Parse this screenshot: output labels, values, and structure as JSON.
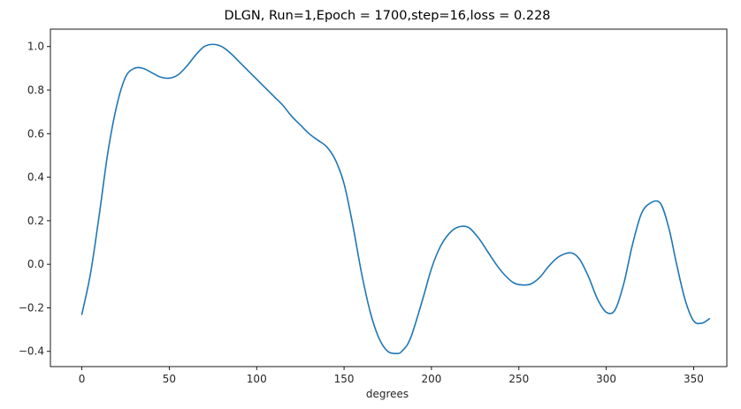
{
  "chart_data": {
    "type": "line",
    "title": "DLGN, Run=1,Epoch = 1700,step=16,loss = 0.228",
    "xlabel": "degrees",
    "ylabel": "",
    "xlim": [
      -18,
      369
    ],
    "ylim": [
      -0.47,
      1.08
    ],
    "xticks": [
      0,
      50,
      100,
      150,
      200,
      250,
      300,
      350
    ],
    "yticks": [
      -0.4,
      -0.2,
      0.0,
      0.2,
      0.4,
      0.6,
      0.8,
      1.0
    ],
    "ytick_labels": [
      "−0.4",
      "−0.2",
      "0.0",
      "0.2",
      "0.4",
      "0.6",
      "0.8",
      "1.0"
    ],
    "grid": false,
    "legend": "none",
    "series": [
      {
        "color": "#1f77b4",
        "x": [
          0,
          5,
          10,
          15,
          20,
          25,
          30,
          35,
          40,
          45,
          50,
          55,
          60,
          65,
          70,
          75,
          80,
          85,
          90,
          95,
          100,
          105,
          110,
          115,
          120,
          125,
          130,
          135,
          140,
          145,
          150,
          155,
          160,
          165,
          170,
          175,
          180,
          183,
          188,
          195,
          200,
          205,
          210,
          215,
          221,
          227,
          232,
          237,
          242,
          247,
          252,
          257,
          262,
          267,
          272,
          277,
          281,
          285,
          290,
          295,
          300,
          305,
          310,
          315,
          320,
          325,
          331,
          336,
          340,
          345,
          350,
          355,
          359
        ],
        "y": [
          -0.23,
          -0.04,
          0.23,
          0.52,
          0.73,
          0.86,
          0.9,
          0.9,
          0.88,
          0.86,
          0.855,
          0.87,
          0.91,
          0.96,
          1.0,
          1.01,
          1.0,
          0.97,
          0.93,
          0.89,
          0.85,
          0.81,
          0.77,
          0.73,
          0.68,
          0.64,
          0.6,
          0.57,
          0.54,
          0.48,
          0.37,
          0.18,
          -0.04,
          -0.22,
          -0.34,
          -0.4,
          -0.41,
          -0.4,
          -0.34,
          -0.16,
          -0.02,
          0.08,
          0.14,
          0.17,
          0.17,
          0.12,
          0.06,
          0.0,
          -0.05,
          -0.085,
          -0.095,
          -0.09,
          -0.06,
          -0.01,
          0.03,
          0.05,
          0.05,
          0.02,
          -0.06,
          -0.16,
          -0.22,
          -0.21,
          -0.09,
          0.09,
          0.23,
          0.28,
          0.28,
          0.16,
          0.01,
          -0.16,
          -0.26,
          -0.27,
          -0.25
        ]
      }
    ]
  }
}
